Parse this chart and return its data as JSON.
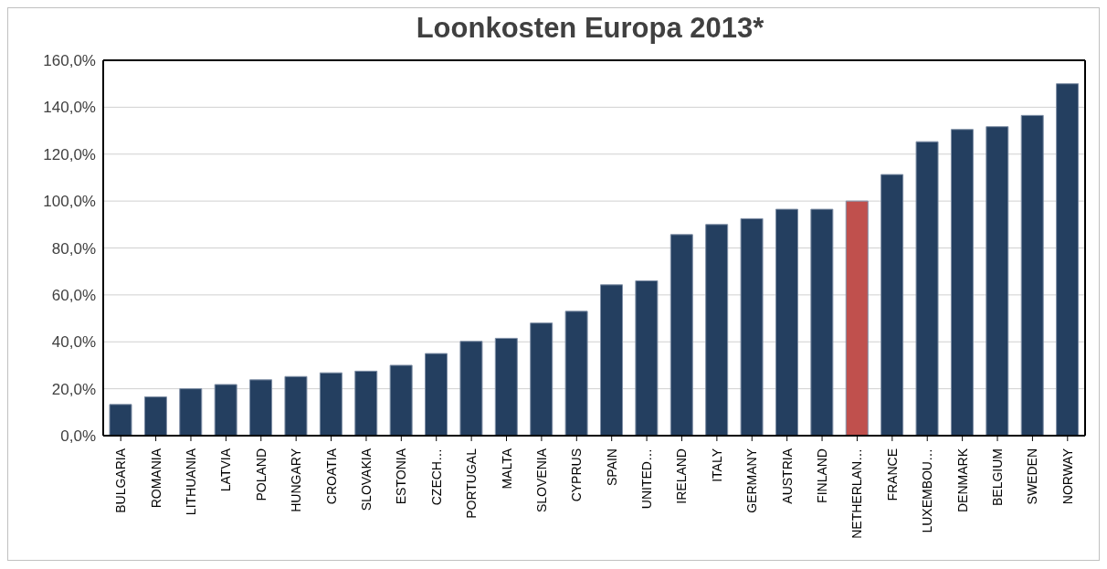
{
  "chart_data": {
    "type": "bar",
    "title": "Loonkosten Europa 2013*",
    "categories": [
      "BULGARIA",
      "ROMANIA",
      "LITHUANIA",
      "LATVIA",
      "POLAND",
      "HUNGARY",
      "CROATIA",
      "SLOVAKIA",
      "ESTONIA",
      "CZECH…",
      "PORTUGAL",
      "MALTA",
      "SLOVENIA",
      "CYPRUS",
      "SPAIN",
      "UNITED…",
      "IRELAND",
      "ITALY",
      "GERMANY",
      "AUSTRIA",
      "FINLAND",
      "NETHERLAN…",
      "FRANCE",
      "LUXEMBOU…",
      "DENMARK",
      "BELGIUM",
      "SWEDEN",
      "NORWAY"
    ],
    "values": [
      13.3,
      16.5,
      20,
      21.8,
      23.8,
      25.2,
      26.8,
      27.5,
      30,
      35,
      40.2,
      41.5,
      48,
      53,
      64.3,
      66,
      85.7,
      90,
      92.5,
      96.5,
      96.5,
      100,
      111.3,
      125.3,
      130.5,
      131.7,
      136.5,
      150
    ],
    "colors": [
      "#243f60",
      "#243f60",
      "#243f60",
      "#243f60",
      "#243f60",
      "#243f60",
      "#243f60",
      "#243f60",
      "#243f60",
      "#243f60",
      "#243f60",
      "#243f60",
      "#243f60",
      "#243f60",
      "#243f60",
      "#243f60",
      "#243f60",
      "#243f60",
      "#243f60",
      "#243f60",
      "#243f60",
      "#c0504d",
      "#243f60",
      "#243f60",
      "#243f60",
      "#243f60",
      "#243f60",
      "#243f60"
    ],
    "ylim": [
      0,
      160
    ],
    "yticks": [
      {
        "value": 0,
        "label": "0,0%"
      },
      {
        "value": 20,
        "label": "20,0%"
      },
      {
        "value": 40,
        "label": "40,0%"
      },
      {
        "value": 60,
        "label": "60,0%"
      },
      {
        "value": 80,
        "label": "80,0%"
      },
      {
        "value": 100,
        "label": "100,0%"
      },
      {
        "value": 120,
        "label": "120,0%"
      },
      {
        "value": 140,
        "label": "140,0%"
      },
      {
        "value": 160,
        "label": "160,0%"
      }
    ],
    "grid": "y"
  }
}
